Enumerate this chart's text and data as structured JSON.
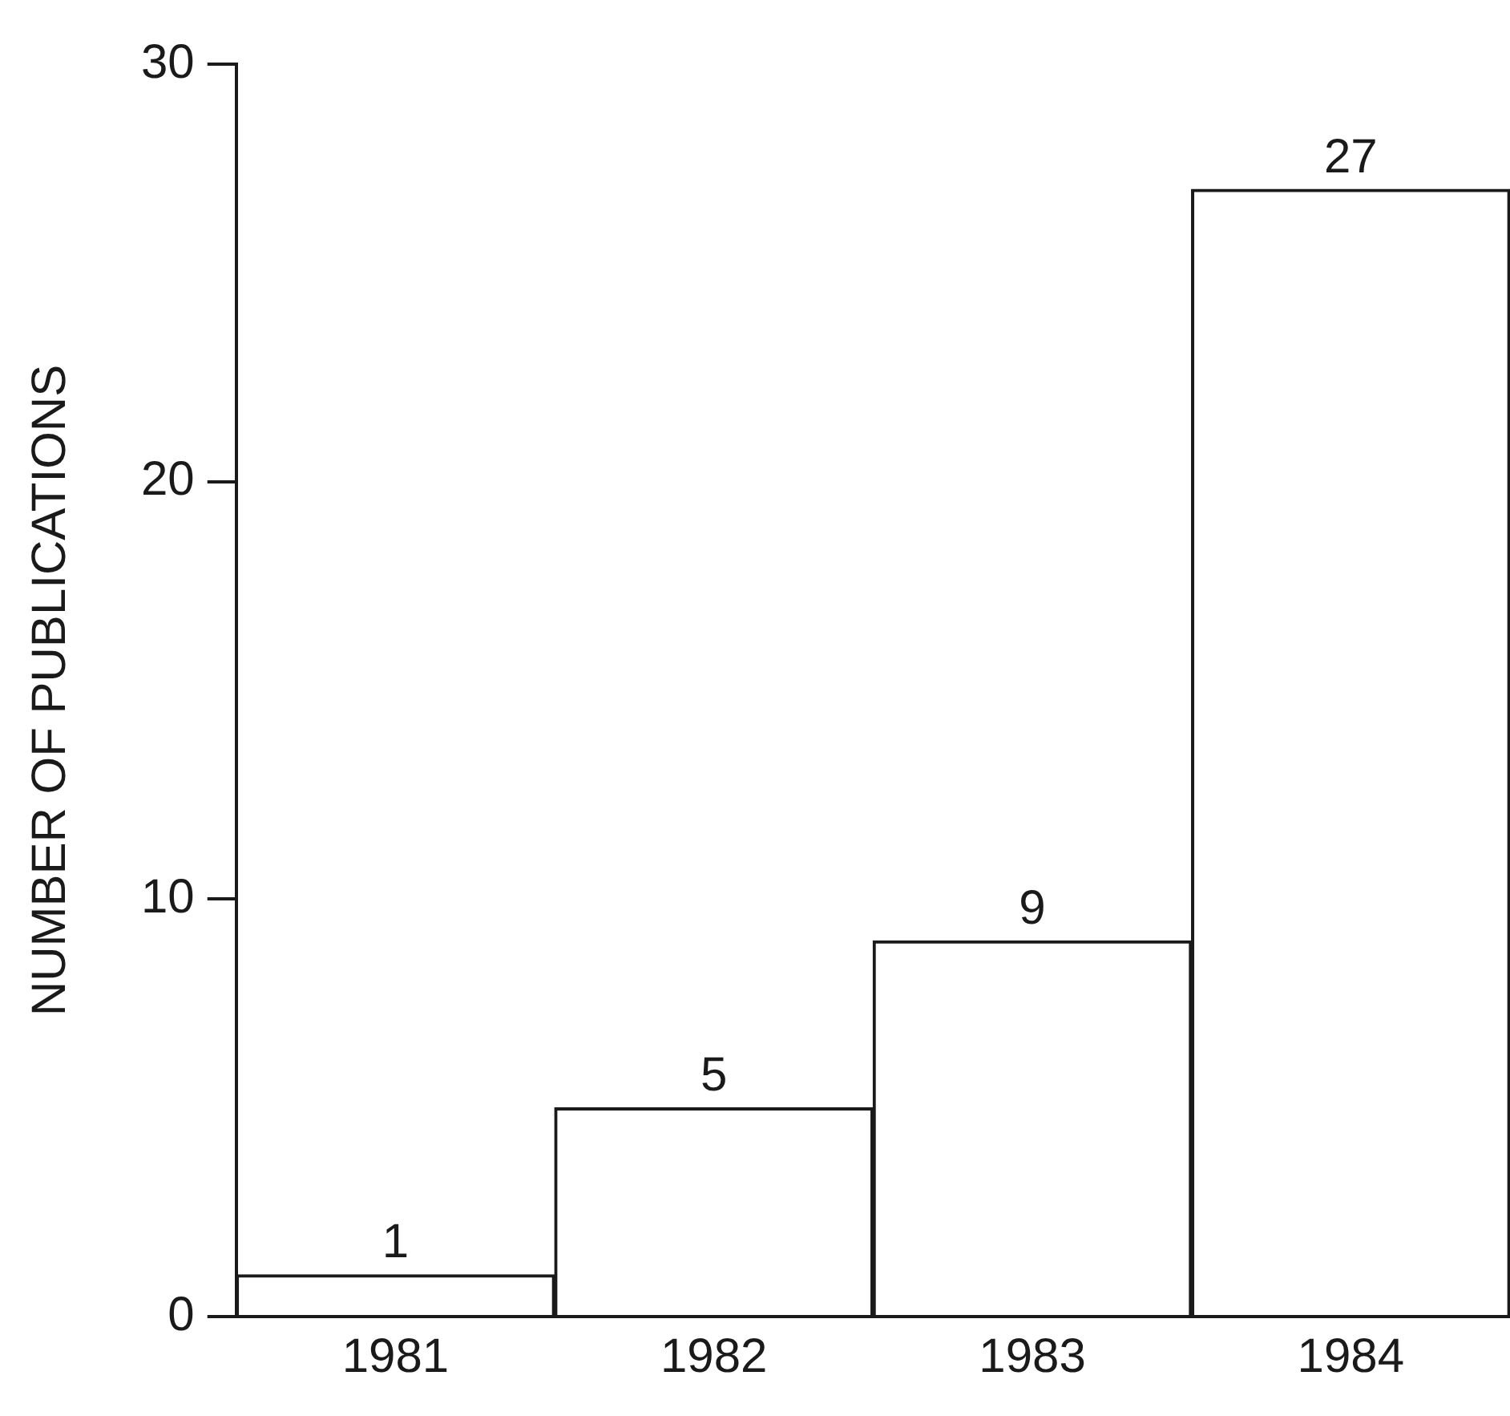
{
  "chart_data": {
    "type": "bar",
    "ylabel": "NUMBER OF PUBLICATIONS",
    "categories": [
      "1981",
      "1982",
      "1983",
      "1984"
    ],
    "values": [
      1,
      5,
      9,
      27
    ],
    "color": "#ffffff",
    "ylim": [
      0,
      30
    ],
    "yticks": [
      0,
      10,
      20,
      30
    ],
    "grid": false,
    "legend": false,
    "data_labels": true
  }
}
